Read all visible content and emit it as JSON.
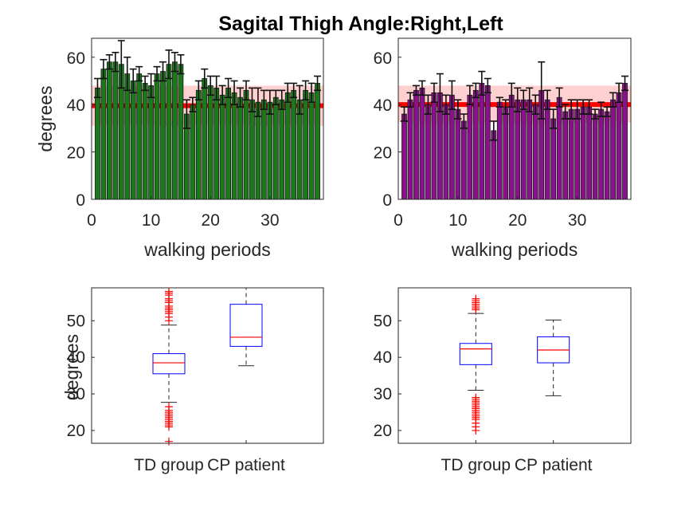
{
  "figure": {
    "title": "Sagital Thigh Angle:Right,Left"
  },
  "colors": {
    "right_bar": "#1a7a1a",
    "left_bar": "#8b108b",
    "mean_line": "#ff0000",
    "band": "#ffc8c8",
    "box": "#0000ff",
    "median": "#ff0000",
    "outlier": "#ff0000",
    "whisker": "#262626"
  },
  "chart_data": [
    {
      "name": "right-bars",
      "type": "bar",
      "xlabel": "walking periods",
      "ylabel": "degrees",
      "xlim": [
        0,
        39
      ],
      "ylim": [
        0,
        68
      ],
      "xticks": [
        0,
        10,
        20,
        30
      ],
      "yticks": [
        0,
        20,
        40,
        60
      ],
      "reference": {
        "mean": 39.5,
        "band": [
          31,
          48
        ]
      },
      "x": [
        1,
        2,
        3,
        4,
        5,
        6,
        7,
        8,
        9,
        10,
        11,
        12,
        13,
        14,
        15,
        16,
        17,
        18,
        19,
        20,
        21,
        22,
        23,
        24,
        25,
        26,
        27,
        28,
        29,
        30,
        31,
        32,
        33,
        34,
        35,
        36,
        37,
        38
      ],
      "values": [
        47,
        55,
        58,
        58,
        57,
        53,
        50,
        53,
        49,
        48,
        53,
        54,
        57,
        58,
        57,
        36,
        40,
        46,
        51,
        48,
        47,
        44,
        47,
        45,
        43,
        46,
        42,
        41,
        42,
        41,
        43,
        42,
        45,
        46,
        42,
        46,
        45,
        49
      ],
      "errors": [
        4,
        4,
        3,
        4,
        10,
        7,
        5,
        3,
        3,
        5,
        3,
        4,
        6,
        4,
        4,
        6,
        3,
        4,
        4,
        4,
        5,
        4,
        4,
        5,
        4,
        4,
        5,
        6,
        4,
        5,
        3,
        4,
        4,
        3,
        6,
        4,
        4,
        3
      ]
    },
    {
      "name": "left-bars",
      "type": "bar",
      "xlabel": "walking periods",
      "ylabel": "",
      "xlim": [
        0,
        39
      ],
      "ylim": [
        0,
        68
      ],
      "xticks": [
        0,
        10,
        20,
        30
      ],
      "yticks": [
        0,
        20,
        40,
        60
      ],
      "reference": {
        "mean": 40,
        "band": [
          32.5,
          48
        ]
      },
      "x": [
        1,
        2,
        3,
        4,
        5,
        6,
        7,
        8,
        9,
        10,
        11,
        12,
        13,
        14,
        15,
        16,
        17,
        18,
        19,
        20,
        21,
        22,
        23,
        24,
        25,
        26,
        27,
        28,
        29,
        30,
        31,
        32,
        33,
        34,
        35,
        36,
        37,
        38
      ],
      "values": [
        36,
        42,
        46,
        47,
        40,
        45,
        45,
        40,
        44,
        38,
        33,
        44,
        46,
        49,
        48,
        29,
        41,
        39,
        44,
        42,
        42,
        42,
        40,
        46,
        42,
        34,
        43,
        37,
        38,
        38,
        39,
        39,
        36,
        38,
        37,
        42,
        45,
        49
      ],
      "errors": [
        3,
        3,
        2,
        3,
        4,
        4,
        8,
        4,
        6,
        4,
        3,
        4,
        3,
        5,
        3,
        4,
        2,
        3,
        5,
        5,
        4,
        5,
        4,
        12,
        4,
        4,
        4,
        3,
        4,
        4,
        3,
        3,
        2,
        3,
        2,
        3,
        4,
        3
      ]
    },
    {
      "name": "right-box",
      "type": "box",
      "ylabel": "degrees",
      "categories": [
        "TD group",
        "CP patient"
      ],
      "ylim": [
        16.5,
        59
      ],
      "yticks": [
        20,
        30,
        40,
        50
      ],
      "boxes": [
        {
          "category": "TD group",
          "q1": 35.5,
          "median": 38.5,
          "q3": 41,
          "whisker_low": 27.7,
          "whisker_high": 48.8,
          "outliers": [
            50,
            51,
            52,
            52.5,
            53,
            53.5,
            54,
            55,
            55.5,
            56,
            57,
            57.5,
            58,
            26.5,
            25.5,
            25,
            24.5,
            24,
            23.5,
            23,
            22.5,
            22,
            21.5,
            21,
            17
          ]
        },
        {
          "category": "CP patient",
          "q1": 43,
          "median": 45.5,
          "q3": 54.5,
          "whisker_low": 37.7,
          "whisker_high": 59,
          "outliers": []
        }
      ]
    },
    {
      "name": "left-box",
      "type": "box",
      "ylabel": "",
      "categories": [
        "TD group",
        "CP patient"
      ],
      "ylim": [
        16.5,
        59
      ],
      "yticks": [
        20,
        30,
        40,
        50
      ],
      "boxes": [
        {
          "category": "TD group",
          "q1": 38,
          "median": 42.3,
          "q3": 43.8,
          "whisker_low": 31,
          "whisker_high": 52,
          "outliers": [
            53,
            53.5,
            54,
            54.5,
            55,
            55.5,
            56,
            29,
            28.5,
            28,
            27.5,
            27,
            26.5,
            26,
            25.5,
            25,
            24.5,
            24,
            23.5,
            23,
            22,
            21,
            20
          ]
        },
        {
          "category": "CP patient",
          "q1": 38.5,
          "median": 42,
          "q3": 45.6,
          "whisker_low": 29.5,
          "whisker_high": 50.2,
          "outliers": []
        }
      ]
    }
  ]
}
